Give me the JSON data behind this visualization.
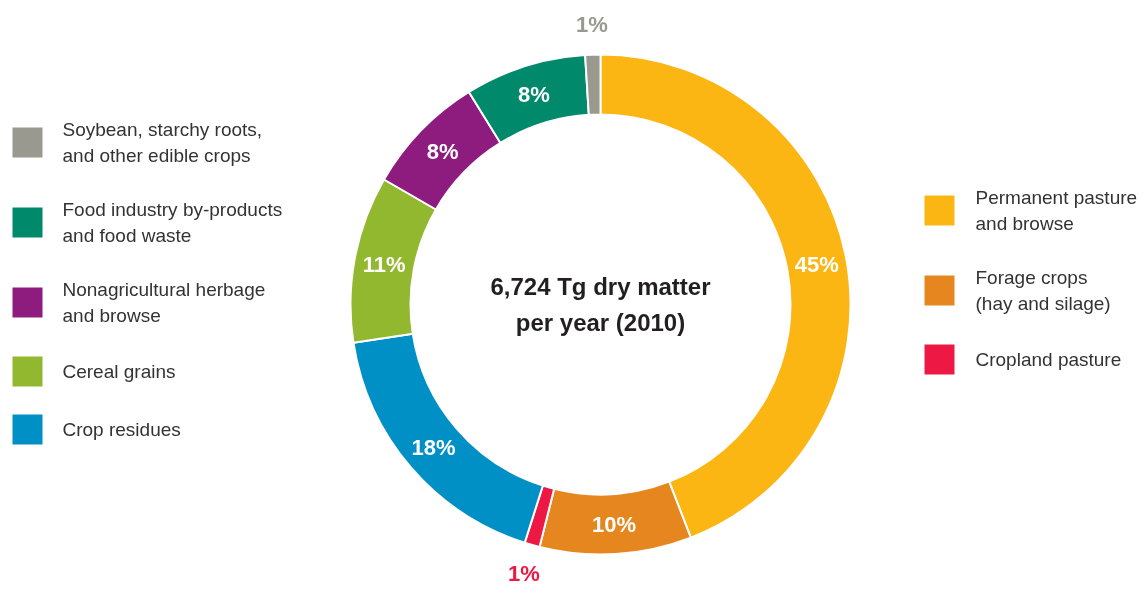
{
  "chart_data": {
    "type": "donut",
    "title": "6,724 Tg dry matter\nper year (2010)",
    "categories": [
      "Permanent pasture\nand browse",
      "Forage crops\n(hay and silage)",
      "Cropland pasture",
      "Crop residues",
      "Cereal grains",
      "Nonagricultural herbage\nand browse",
      "Food industry by-products\nand food waste",
      "Soybean, starchy roots,\nand other edible crops"
    ],
    "values": [
      45,
      10,
      1,
      18,
      11,
      8,
      8,
      1
    ],
    "colors": [
      "#fbb614",
      "#e6861e",
      "#ee1845",
      "#0090c6",
      "#92b830",
      "#8e1c7f",
      "#00896a",
      "#999990"
    ],
    "value_labels": [
      "45%",
      "10%",
      "1%",
      "18%",
      "11%",
      "8%",
      "8%",
      "1%"
    ],
    "legend": "left"
  }
}
